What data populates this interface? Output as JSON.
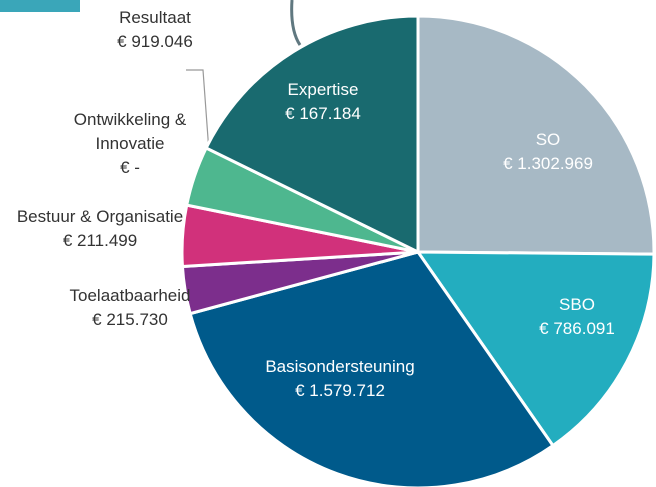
{
  "chart_data": {
    "type": "pie",
    "categories": [
      "SO",
      "SBO",
      "Basisondersteuning",
      "Expertise",
      "Toelaatbaarheid",
      "Bestuur & Organisatie",
      "Ontwikkeling & Innovatie",
      "Resultaat"
    ],
    "values": [
      1302969,
      786091,
      1579712,
      167184,
      215730,
      211499,
      0,
      919046
    ],
    "value_labels": [
      "€ 1.302.969",
      "€ 786.091",
      "€ 1.579.712",
      "€ 167.184",
      "€ 215.730",
      "€ 211.499",
      "€ -",
      "€ 919.046"
    ],
    "colors": [
      "#a7b9c5",
      "#23adbf",
      "#005a8b",
      "#7c2e8c",
      "#d1317b",
      "#4eb78f",
      "#888888",
      "#196a6f"
    ]
  }
}
